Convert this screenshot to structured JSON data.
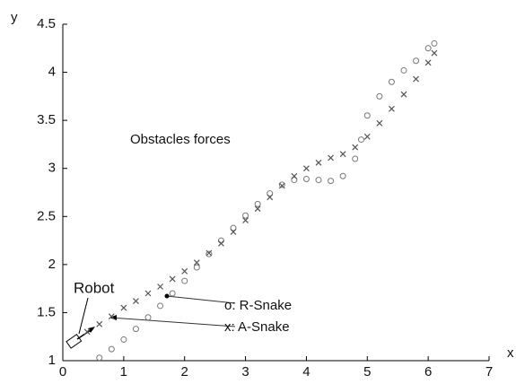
{
  "chart_data": {
    "type": "scatter",
    "x_label": "x",
    "y_label": "y",
    "annotations": [
      "Obstacles forces",
      "Robot"
    ],
    "xlim": [
      0,
      7
    ],
    "xticks": [
      0,
      1,
      2,
      3,
      4,
      5,
      6,
      7
    ],
    "ylim": [
      1,
      4.5
    ],
    "yticks": [
      1,
      1.5,
      2,
      2.5,
      3,
      3.5,
      4,
      4.5
    ],
    "series": [
      {
        "name": "o: R-Snake",
        "marker": "o",
        "color": "#777777",
        "x": [
          0.6,
          0.8,
          1.0,
          1.2,
          1.4,
          1.6,
          1.8,
          2.0,
          2.2,
          2.4,
          2.6,
          2.8,
          3.0,
          3.2,
          3.4,
          3.6,
          3.8,
          4.0,
          4.2,
          4.4,
          4.6,
          4.8,
          4.9,
          5.0,
          5.2,
          5.4,
          5.6,
          5.8,
          6.0,
          6.1
        ],
        "values": [
          1.03,
          1.12,
          1.22,
          1.33,
          1.45,
          1.57,
          1.7,
          1.83,
          1.97,
          2.11,
          2.25,
          2.38,
          2.51,
          2.63,
          2.74,
          2.83,
          2.88,
          2.89,
          2.88,
          2.87,
          2.92,
          3.1,
          3.3,
          3.55,
          3.75,
          3.9,
          4.02,
          4.12,
          4.25,
          4.3
        ]
      },
      {
        "name": "x: A-Snake",
        "marker": "x",
        "color": "#555555",
        "x": [
          0.4,
          0.6,
          0.8,
          1.0,
          1.2,
          1.4,
          1.6,
          1.8,
          2.0,
          2.2,
          2.4,
          2.6,
          2.8,
          3.0,
          3.2,
          3.4,
          3.6,
          3.8,
          4.0,
          4.2,
          4.4,
          4.6,
          4.8,
          5.0,
          5.2,
          5.4,
          5.6,
          5.8,
          6.0,
          6.1
        ],
        "values": [
          1.3,
          1.38,
          1.46,
          1.55,
          1.62,
          1.7,
          1.77,
          1.85,
          1.93,
          2.02,
          2.12,
          2.22,
          2.34,
          2.46,
          2.58,
          2.7,
          2.82,
          2.92,
          3.0,
          3.06,
          3.11,
          3.15,
          3.22,
          3.33,
          3.47,
          3.62,
          3.77,
          3.93,
          4.1,
          4.2
        ]
      }
    ]
  }
}
